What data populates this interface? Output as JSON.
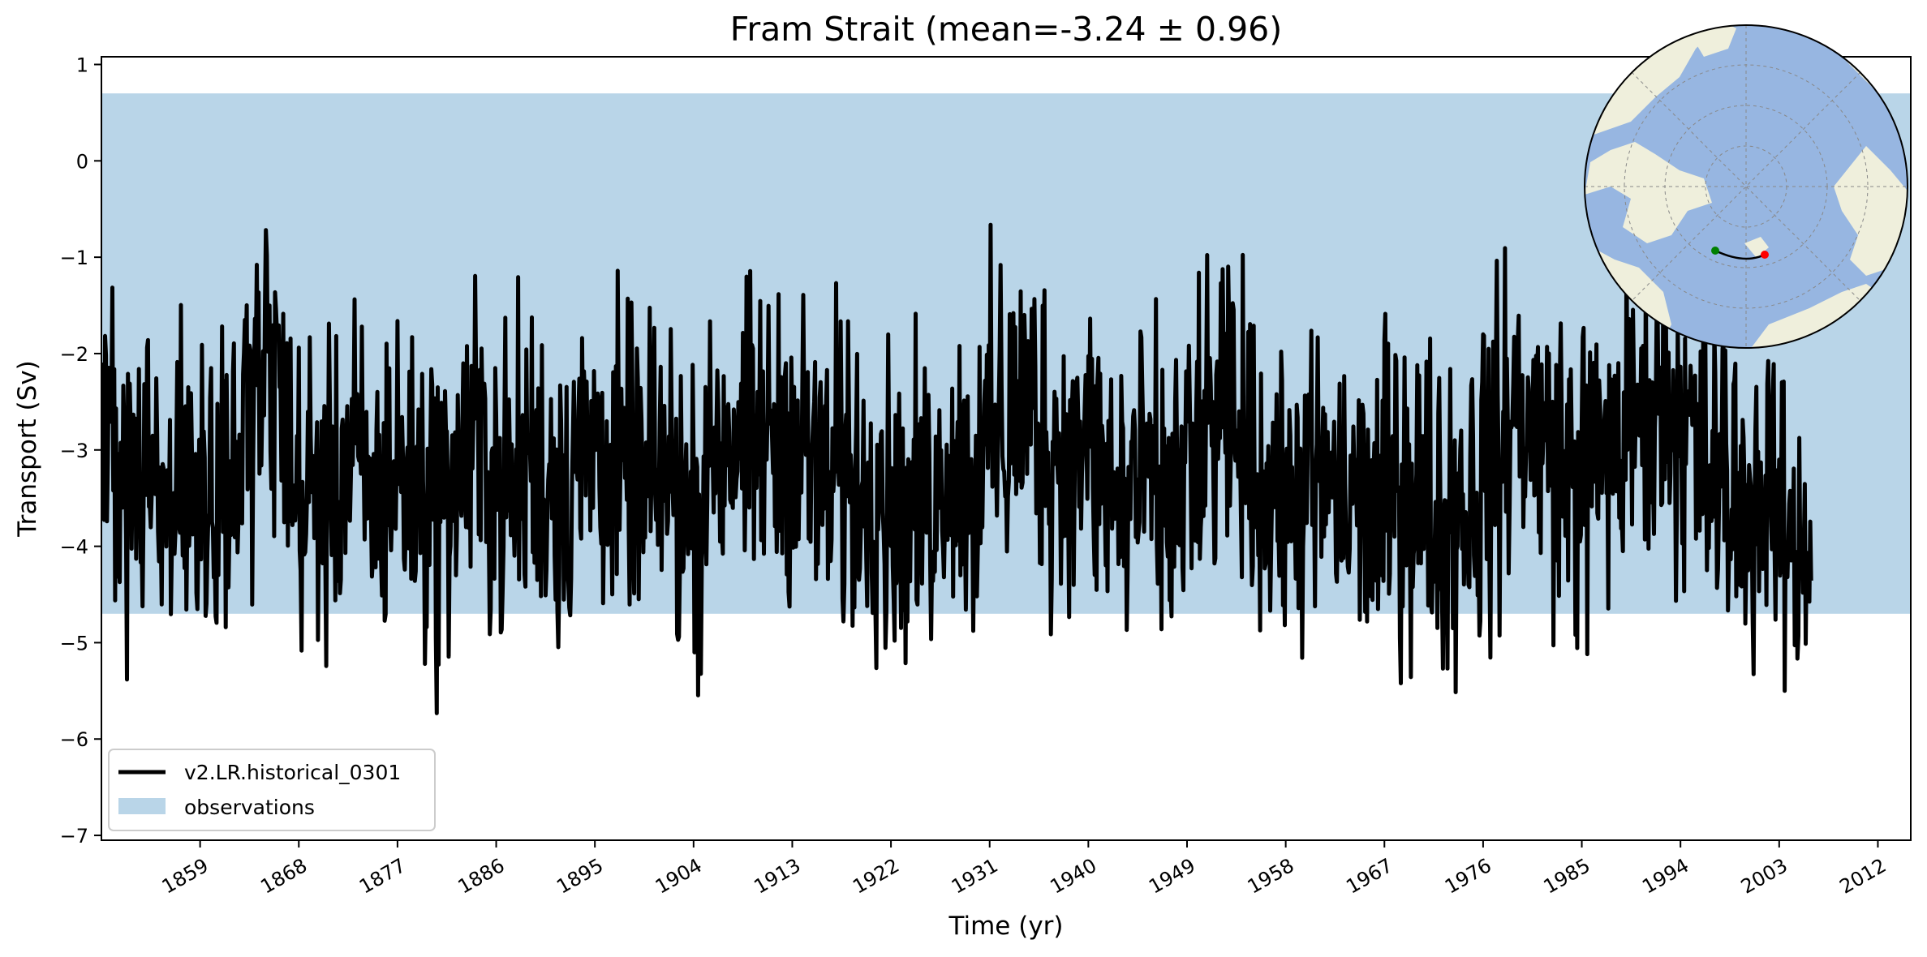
{
  "chart_data": {
    "type": "line",
    "title": "Fram Strait (mean=-3.24 ± 0.96)",
    "xlabel": "Time (yr)",
    "ylabel": "Transport (Sv)",
    "xlim": [
      1850,
      2015
    ],
    "ylim": [
      -7.05,
      1.08
    ],
    "x_ticks": [
      1859,
      1868,
      1877,
      1886,
      1895,
      1904,
      1913,
      1922,
      1931,
      1940,
      1949,
      1958,
      1967,
      1976,
      1985,
      1994,
      2003,
      2012
    ],
    "y_ticks": [
      1,
      0,
      -1,
      -2,
      -3,
      -4,
      -5,
      -6,
      -7
    ],
    "y_tick_labels": [
      "1",
      "0",
      "−1",
      "−2",
      "−3",
      "−4",
      "−5",
      "−6",
      "−7"
    ],
    "grid": false,
    "legend_position": "lower-left",
    "observations_band": {
      "name": "observations",
      "low": -4.7,
      "high": 0.7,
      "color": "#b9d5e8"
    },
    "series": [
      {
        "name": "v2.LR.historical_0301",
        "color": "#000000",
        "annual_mean": [
          -3.35,
          -3.1,
          -3.2,
          -3.3,
          -3.15,
          -3.4,
          -3.5,
          -3.3,
          -3.45,
          -3.5,
          -3.75,
          -3.3,
          -3.0,
          -2.6,
          -2.3,
          -2.2,
          -2.5,
          -3.3,
          -3.6,
          -3.4,
          -3.45,
          -3.3,
          -3.1,
          -3.2,
          -3.5,
          -3.6,
          -3.1,
          -3.3,
          -3.4,
          -3.5,
          -3.5,
          -3.4,
          -3.3,
          -3.0,
          -2.95,
          -3.2,
          -3.4,
          -3.5,
          -3.2,
          -3.1,
          -3.3,
          -3.35,
          -3.4,
          -3.1,
          -3.0,
          -3.0,
          -3.2,
          -3.3,
          -3.2,
          -3.4,
          -3.3,
          -3.2,
          -3.5,
          -3.6,
          -3.7,
          -3.1,
          -2.9,
          -2.85,
          -2.95,
          -3.0,
          -2.9,
          -2.9,
          -2.8,
          -3.0,
          -3.1,
          -3.3,
          -3.4,
          -3.2,
          -3.3,
          -3.4,
          -3.2,
          -3.4,
          -3.6,
          -3.7,
          -3.6,
          -3.5,
          -3.3,
          -3.1,
          -3.2,
          -3.4,
          -3.0,
          -2.9,
          -2.7,
          -2.6,
          -2.55,
          -2.7,
          -2.9,
          -3.1,
          -3.0,
          -2.9,
          -3.1,
          -3.3,
          -3.5,
          -3.5,
          -3.3,
          -3.35,
          -3.5,
          -3.6,
          -3.4,
          -3.2,
          -3.0,
          -2.8,
          -2.7,
          -2.8,
          -3.0,
          -3.3,
          -3.4,
          -3.5,
          -3.6,
          -3.5,
          -3.4,
          -3.3,
          -3.5,
          -3.6,
          -3.5,
          -3.6,
          -3.7,
          -3.5,
          -3.3,
          -3.4,
          -3.5,
          -3.6,
          -3.7,
          -3.6,
          -3.5,
          -3.4,
          -3.2,
          -3.0,
          -2.7,
          -2.6,
          -2.75,
          -2.9,
          -3.1,
          -3.2,
          -3.3,
          -3.2,
          -3.1,
          -3.0,
          -2.9,
          -2.7,
          -2.6,
          -2.55,
          -2.5,
          -2.6,
          -2.8,
          -3.0,
          -3.2,
          -3.3,
          -3.4,
          -3.5,
          -3.55,
          -3.5,
          -3.6,
          -3.8,
          -3.9,
          -3.9
        ]
      }
    ]
  },
  "inset_map": {
    "projection": "north-polar-stereographic",
    "ocean_color": "#97b6e1",
    "land_color": "#efefdc",
    "transect_start_color": "#008000",
    "transect_end_color": "#ff0000"
  }
}
